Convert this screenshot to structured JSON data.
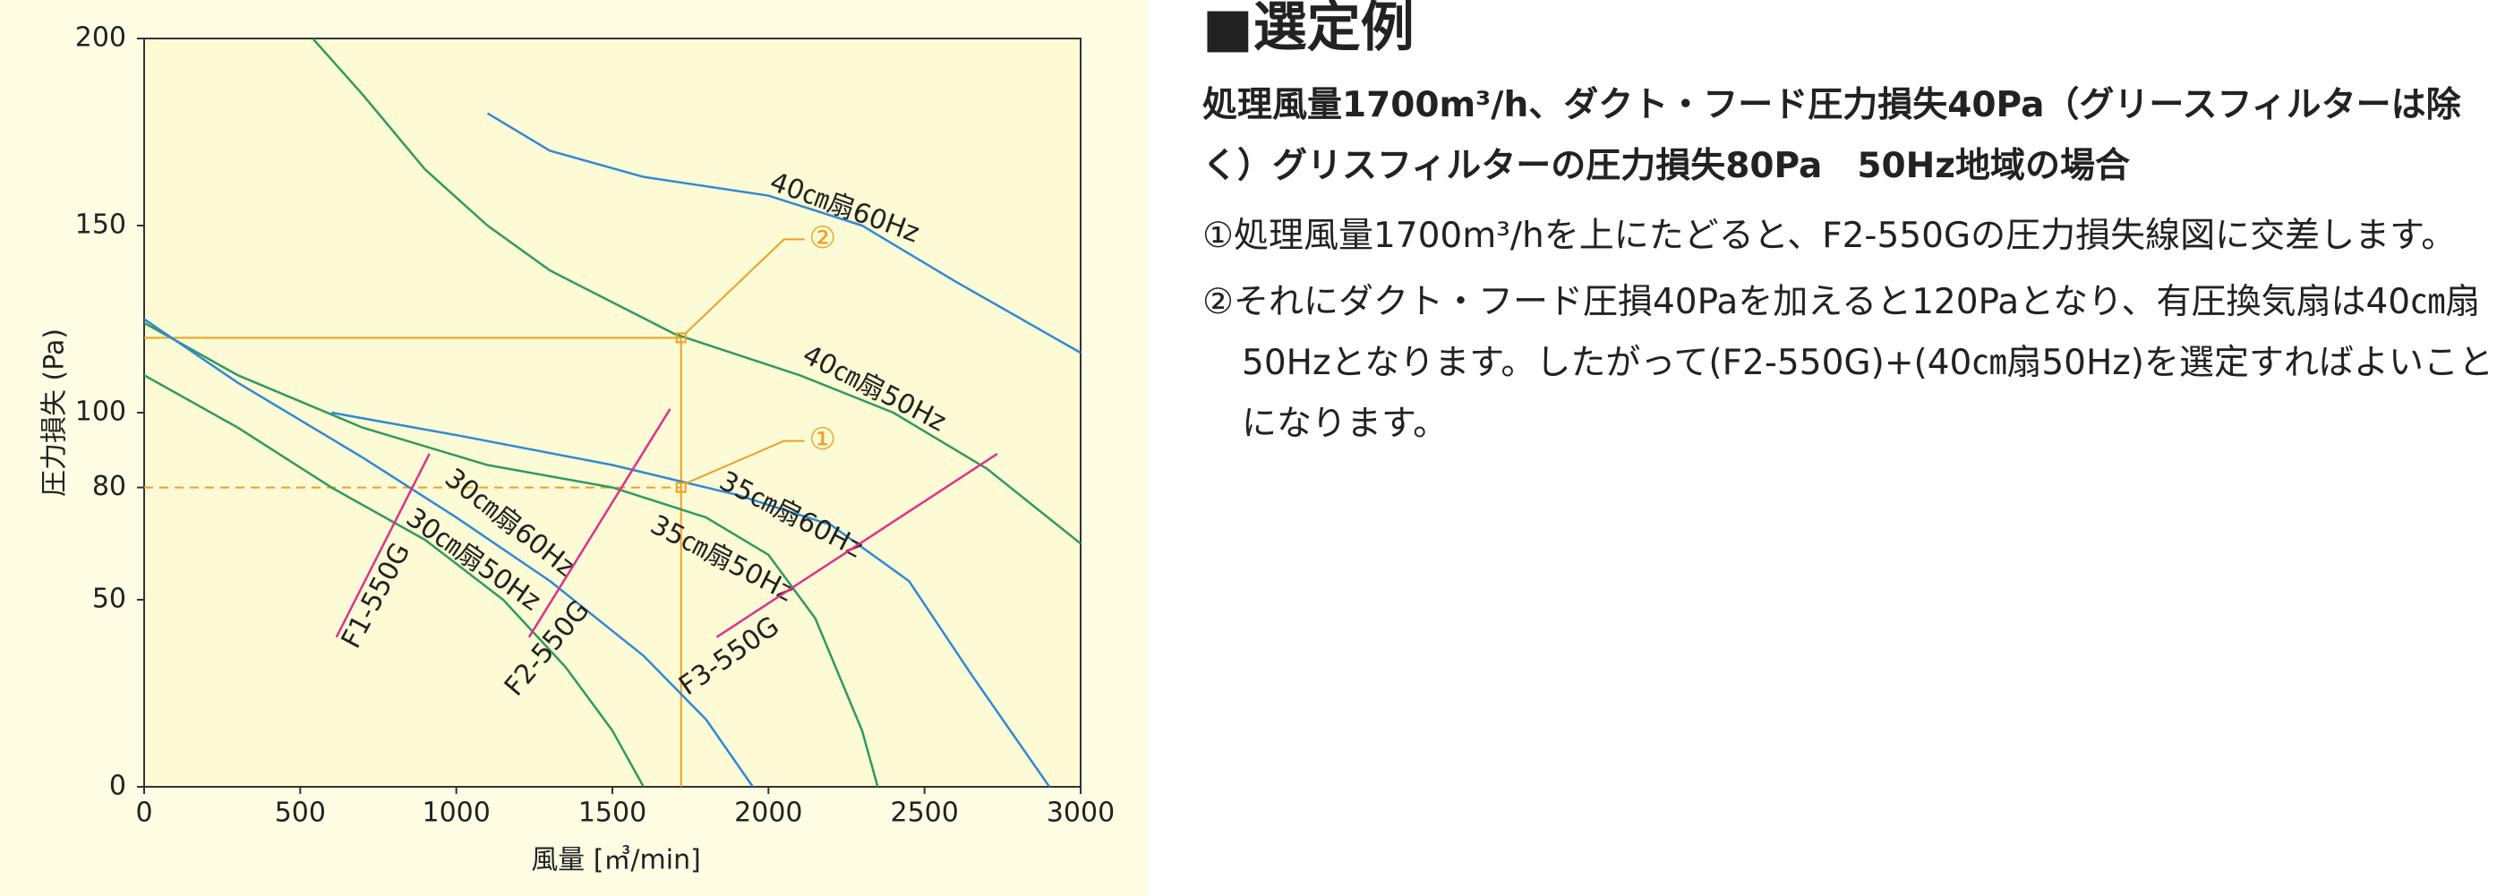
{
  "chart_data": {
    "type": "line",
    "xlabel": "風量 [㎥/min]",
    "ylabel": "圧力損失 (Pa)",
    "xlim": [
      0,
      3000
    ],
    "xticks": [
      0,
      500,
      1000,
      1500,
      2000,
      2500,
      3000
    ],
    "ylim": [
      0,
      200
    ],
    "yticks": [
      0,
      50,
      80,
      100,
      150,
      200
    ],
    "series": [
      {
        "name": "40㎝扇60Hz",
        "color": "#2e8ad6",
        "x": [
          1100,
          1300,
          1600,
          2000,
          2300,
          2600,
          3000
        ],
        "values": [
          180,
          170,
          163,
          158,
          150,
          135,
          116
        ]
      },
      {
        "name": "40㎝扇50Hz",
        "color": "#2f9a5e",
        "x": [
          540,
          700,
          900,
          1100,
          1300,
          1700,
          2100,
          2400,
          2700,
          3000
        ],
        "values": [
          200,
          185,
          165,
          150,
          138,
          121,
          110,
          100,
          85,
          65
        ]
      },
      {
        "name": "35㎝扇60Hz",
        "color": "#2e8ad6",
        "x": [
          600,
          1000,
          1500,
          1900,
          2200,
          2450,
          2650,
          2900
        ],
        "values": [
          100,
          94,
          86,
          78,
          70,
          55,
          30,
          0
        ]
      },
      {
        "name": "35㎝扇50Hz",
        "color": "#2f9a5e",
        "x": [
          0,
          300,
          700,
          1100,
          1500,
          1800,
          2000,
          2150,
          2300,
          2350
        ],
        "values": [
          124,
          110,
          96,
          86,
          80,
          72,
          62,
          45,
          15,
          0
        ]
      },
      {
        "name": "30㎝扇60Hz",
        "color": "#2e8ad6",
        "x": [
          0,
          300,
          700,
          1000,
          1300,
          1600,
          1800,
          1950
        ],
        "values": [
          125,
          108,
          88,
          72,
          55,
          35,
          18,
          0
        ]
      },
      {
        "name": "30㎝扇50Hz",
        "color": "#2f9a5e",
        "x": [
          0,
          300,
          600,
          900,
          1150,
          1350,
          1500,
          1600
        ],
        "values": [
          110,
          96,
          80,
          66,
          50,
          32,
          15,
          0
        ]
      },
      {
        "name": "F1-550G",
        "color": "#e0308a",
        "x": [
          616,
          914
        ],
        "values": [
          40,
          89
        ]
      },
      {
        "name": "F2-550G",
        "color": "#e0308a",
        "x": [
          1233,
          1685
        ],
        "values": [
          40,
          101
        ]
      },
      {
        "name": "F3-550G",
        "color": "#e0308a",
        "x": [
          1834,
          2733
        ],
        "values": [
          40,
          89
        ]
      }
    ],
    "annotations": [
      {
        "label": "①",
        "x": 1720,
        "y": 80,
        "style": "dashed",
        "color": "#f0a020"
      },
      {
        "label": "②",
        "x": 1720,
        "y": 120,
        "style": "solid",
        "color": "#f0a020"
      }
    ]
  },
  "text": {
    "heading": "■選定例",
    "intro": "処理風量1700m³/h、ダクト・フード圧力損失40Pa（グリースフィルターは除く）グリスフィルターの圧力損失80Pa　50Hz地域の場合",
    "steps": [
      "①処理風量1700m³/hを上にたどると、F2-550Gの圧力損失線図に交差します。",
      "②それにダクト・フード圧損40Paを加えると120Paとなり、有圧換気扇は40㎝扇50Hzとなります。したがって(F2-550G)+(40㎝扇50Hz)を選定すればよいことになります。"
    ]
  }
}
